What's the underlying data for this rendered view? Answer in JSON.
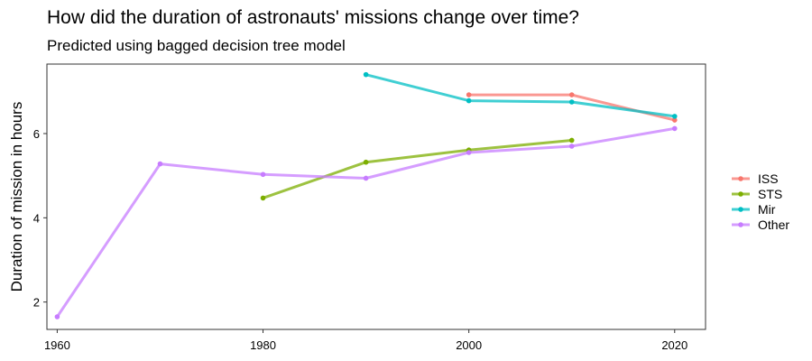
{
  "chart_data": {
    "type": "line",
    "title": "How did the duration of astronauts' missions change over time?",
    "subtitle": "Predicted using bagged decision tree model",
    "xlabel": "",
    "ylabel": "Duration of mission in hours",
    "xlim": [
      1959,
      2023
    ],
    "ylim": [
      1.35,
      7.65
    ],
    "xticks": [
      1960,
      1980,
      2000,
      2020
    ],
    "yticks": [
      2,
      4,
      6
    ],
    "grid": false,
    "legend_position": "right",
    "series": [
      {
        "name": "ISS",
        "color": "#F8766D",
        "points": [
          [
            2000,
            6.92
          ],
          [
            2010,
            6.92
          ],
          [
            2020,
            6.32
          ]
        ]
      },
      {
        "name": "STS",
        "color": "#7CAE00",
        "points": [
          [
            1980,
            4.47
          ],
          [
            1990,
            5.32
          ],
          [
            2000,
            5.61
          ],
          [
            2010,
            5.84
          ]
        ]
      },
      {
        "name": "Mir",
        "color": "#00BFC4",
        "points": [
          [
            1990,
            7.4
          ],
          [
            2000,
            6.78
          ],
          [
            2010,
            6.75
          ],
          [
            2020,
            6.41
          ]
        ]
      },
      {
        "name": "Other",
        "color": "#C77CFF",
        "points": [
          [
            1960,
            1.65
          ],
          [
            1970,
            5.28
          ],
          [
            1980,
            5.03
          ],
          [
            1990,
            4.94
          ],
          [
            2000,
            5.55
          ],
          [
            2010,
            5.7
          ],
          [
            2020,
            6.12
          ]
        ]
      }
    ]
  }
}
